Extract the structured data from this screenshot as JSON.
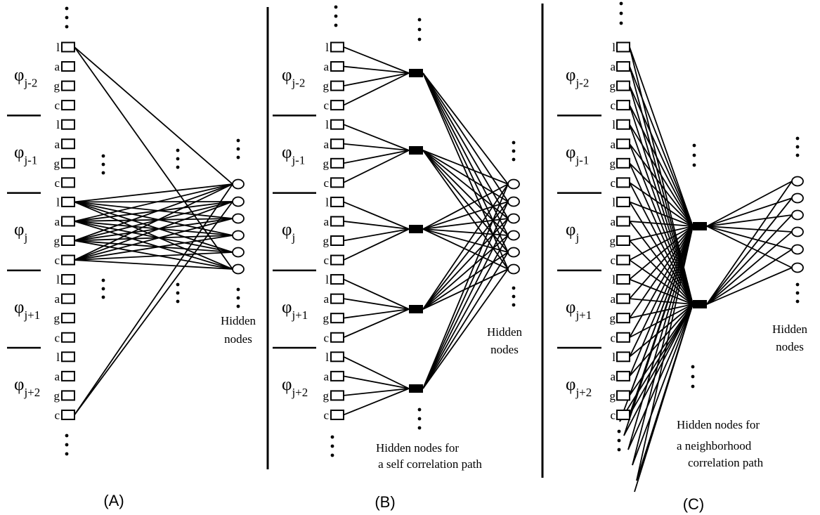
{
  "symbols": {
    "phi": "φ",
    "nucleotides": [
      "l",
      "a",
      "g",
      "c"
    ],
    "ellipsis": "⋮"
  },
  "groups": [
    {
      "base": "φ",
      "sub": "j-2"
    },
    {
      "base": "φ",
      "sub": "j-1"
    },
    {
      "base": "φ",
      "sub": "j"
    },
    {
      "base": "φ",
      "sub": "j+1"
    },
    {
      "base": "φ",
      "sub": "j+2"
    }
  ],
  "panels": [
    {
      "label": "(A)",
      "hidden_caption": [
        "Hidden",
        "nodes"
      ]
    },
    {
      "label": "(B)",
      "hidden_caption": [
        "Hidden",
        "nodes"
      ],
      "path_caption": [
        "Hidden nodes for",
        "a self correlation path"
      ]
    },
    {
      "label": "(C)",
      "hidden_caption": [
        "Hidden",
        "nodes"
      ],
      "path_caption": [
        "Hidden nodes for",
        "a neighborhood",
        "correlation path"
      ]
    }
  ]
}
